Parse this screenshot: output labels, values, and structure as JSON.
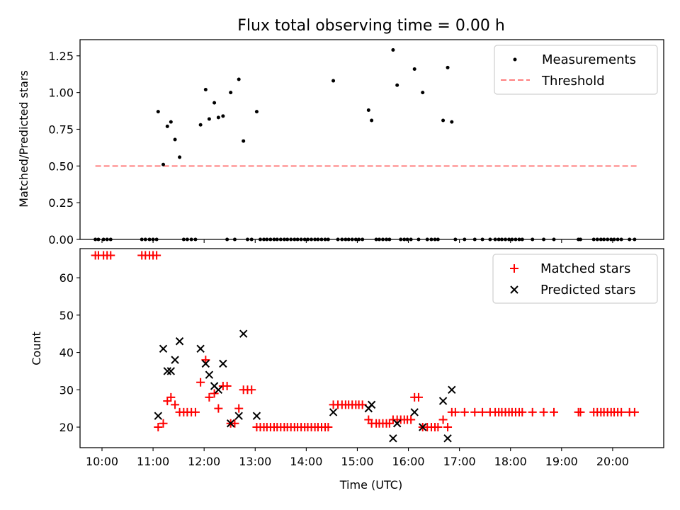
{
  "chart_data": [
    {
      "type": "scatter",
      "title": "Flux total observing time = 0.00 h",
      "xlabel": "",
      "ylabel": "Matched/Predicted stars",
      "xlim": [
        9.57,
        21.0
      ],
      "ylim": [
        0.0,
        1.36
      ],
      "y_ticks": [
        "0.00",
        "0.25",
        "0.50",
        "0.75",
        "1.00",
        "1.25"
      ],
      "y_tick_values": [
        0.0,
        0.25,
        0.5,
        0.75,
        1.0,
        1.25
      ],
      "x_tick_values": [
        10,
        11,
        12,
        13,
        14,
        15,
        16,
        17,
        18,
        19,
        20
      ],
      "legend": {
        "position": "top-right",
        "entries": [
          "Measurements",
          "Threshold"
        ]
      },
      "series": [
        {
          "name": "Measurements",
          "style": "dot",
          "color": "#000000",
          "points": [
            [
              9.87,
              0
            ],
            [
              9.93,
              0
            ],
            [
              10.03,
              0
            ],
            [
              10.1,
              0
            ],
            [
              10.17,
              0
            ],
            [
              10.78,
              0
            ],
            [
              10.85,
              0
            ],
            [
              10.93,
              0
            ],
            [
              11.0,
              0
            ],
            [
              11.07,
              0
            ],
            [
              11.1,
              0.87
            ],
            [
              11.2,
              0.51
            ],
            [
              11.28,
              0.77
            ],
            [
              11.35,
              0.8
            ],
            [
              11.43,
              0.68
            ],
            [
              11.52,
              0.56
            ],
            [
              11.6,
              0
            ],
            [
              11.67,
              0
            ],
            [
              11.75,
              0
            ],
            [
              11.83,
              0
            ],
            [
              11.93,
              0.78
            ],
            [
              12.03,
              1.02
            ],
            [
              12.1,
              0.82
            ],
            [
              12.2,
              0.93
            ],
            [
              12.28,
              0.83
            ],
            [
              12.37,
              0.84
            ],
            [
              12.45,
              0
            ],
            [
              12.52,
              1.0
            ],
            [
              12.6,
              0
            ],
            [
              12.68,
              1.09
            ],
            [
              12.77,
              0.67
            ],
            [
              12.85,
              0
            ],
            [
              12.93,
              0
            ],
            [
              13.03,
              0.87
            ],
            [
              13.1,
              0
            ],
            [
              13.17,
              0
            ],
            [
              13.23,
              0
            ],
            [
              13.3,
              0
            ],
            [
              13.37,
              0
            ],
            [
              13.43,
              0
            ],
            [
              13.5,
              0
            ],
            [
              13.57,
              0
            ],
            [
              13.63,
              0
            ],
            [
              13.7,
              0
            ],
            [
              13.77,
              0
            ],
            [
              13.83,
              0
            ],
            [
              13.9,
              0
            ],
            [
              13.97,
              0
            ],
            [
              14.03,
              0
            ],
            [
              14.1,
              0
            ],
            [
              14.17,
              0
            ],
            [
              14.23,
              0
            ],
            [
              14.3,
              0
            ],
            [
              14.37,
              0
            ],
            [
              14.43,
              0
            ],
            [
              14.53,
              1.08
            ],
            [
              14.62,
              0
            ],
            [
              14.7,
              0
            ],
            [
              14.77,
              0
            ],
            [
              14.83,
              0
            ],
            [
              14.9,
              0
            ],
            [
              14.97,
              0
            ],
            [
              15.03,
              0
            ],
            [
              15.1,
              0
            ],
            [
              15.22,
              0.88
            ],
            [
              15.28,
              0.81
            ],
            [
              15.37,
              0
            ],
            [
              15.43,
              0
            ],
            [
              15.5,
              0
            ],
            [
              15.57,
              0
            ],
            [
              15.63,
              0
            ],
            [
              15.7,
              1.29
            ],
            [
              15.78,
              1.05
            ],
            [
              15.85,
              0
            ],
            [
              15.92,
              0
            ],
            [
              15.98,
              0
            ],
            [
              16.05,
              0
            ],
            [
              16.12,
              1.16
            ],
            [
              16.2,
              0
            ],
            [
              16.28,
              1.0
            ],
            [
              16.37,
              0
            ],
            [
              16.45,
              0
            ],
            [
              16.52,
              0
            ],
            [
              16.58,
              0
            ],
            [
              16.68,
              0.81
            ],
            [
              16.77,
              1.17
            ],
            [
              16.85,
              0.8
            ],
            [
              16.92,
              0
            ],
            [
              17.1,
              0
            ],
            [
              17.3,
              0
            ],
            [
              17.45,
              0
            ],
            [
              17.6,
              0
            ],
            [
              17.7,
              0
            ],
            [
              17.77,
              0
            ],
            [
              17.83,
              0
            ],
            [
              17.9,
              0
            ],
            [
              17.97,
              0
            ],
            [
              18.03,
              0
            ],
            [
              18.1,
              0
            ],
            [
              18.17,
              0
            ],
            [
              18.23,
              0
            ],
            [
              18.43,
              0
            ],
            [
              18.65,
              0
            ],
            [
              18.85,
              0
            ],
            [
              19.33,
              0
            ],
            [
              19.37,
              0
            ],
            [
              19.63,
              0
            ],
            [
              19.7,
              0
            ],
            [
              19.77,
              0
            ],
            [
              19.83,
              0
            ],
            [
              19.9,
              0
            ],
            [
              19.97,
              0
            ],
            [
              20.03,
              0
            ],
            [
              20.1,
              0
            ],
            [
              20.17,
              0
            ],
            [
              20.33,
              0
            ],
            [
              20.43,
              0
            ]
          ]
        },
        {
          "name": "Threshold",
          "style": "dashed",
          "color": "#ff7f7f",
          "points": [
            [
              9.87,
              0.5
            ],
            [
              20.48,
              0.5
            ]
          ]
        }
      ]
    },
    {
      "type": "scatter",
      "title": "",
      "xlabel": "Time (UTC)",
      "ylabel": "Count",
      "xlim": [
        9.57,
        21.0
      ],
      "ylim": [
        14.5,
        67.8
      ],
      "y_ticks": [
        "20",
        "30",
        "40",
        "50",
        "60"
      ],
      "y_tick_values": [
        20,
        30,
        40,
        50,
        60
      ],
      "x_ticks": [
        "10:00",
        "11:00",
        "12:00",
        "13:00",
        "14:00",
        "15:00",
        "16:00",
        "17:00",
        "18:00",
        "19:00",
        "20:00"
      ],
      "x_tick_values": [
        10,
        11,
        12,
        13,
        14,
        15,
        16,
        17,
        18,
        19,
        20
      ],
      "legend": {
        "position": "top-right",
        "entries": [
          "Matched stars",
          "Predicted stars"
        ]
      },
      "series": [
        {
          "name": "Matched stars",
          "style": "plus",
          "color": "#ff0000",
          "points": [
            [
              9.87,
              66
            ],
            [
              9.93,
              66
            ],
            [
              10.03,
              66
            ],
            [
              10.1,
              66
            ],
            [
              10.17,
              66
            ],
            [
              10.78,
              66
            ],
            [
              10.85,
              66
            ],
            [
              10.93,
              66
            ],
            [
              11.0,
              66
            ],
            [
              11.07,
              66
            ],
            [
              11.1,
              20
            ],
            [
              11.2,
              21
            ],
            [
              11.28,
              27
            ],
            [
              11.35,
              28
            ],
            [
              11.43,
              26
            ],
            [
              11.52,
              24
            ],
            [
              11.6,
              24
            ],
            [
              11.67,
              24
            ],
            [
              11.75,
              24
            ],
            [
              11.83,
              24
            ],
            [
              11.93,
              32
            ],
            [
              12.03,
              38
            ],
            [
              12.1,
              28
            ],
            [
              12.2,
              29
            ],
            [
              12.28,
              25
            ],
            [
              12.37,
              31
            ],
            [
              12.45,
              31
            ],
            [
              12.52,
              21
            ],
            [
              12.6,
              21
            ],
            [
              12.68,
              25
            ],
            [
              12.77,
              30
            ],
            [
              12.85,
              30
            ],
            [
              12.93,
              30
            ],
            [
              13.03,
              20
            ],
            [
              13.1,
              20
            ],
            [
              13.17,
              20
            ],
            [
              13.23,
              20
            ],
            [
              13.3,
              20
            ],
            [
              13.37,
              20
            ],
            [
              13.43,
              20
            ],
            [
              13.5,
              20
            ],
            [
              13.57,
              20
            ],
            [
              13.63,
              20
            ],
            [
              13.7,
              20
            ],
            [
              13.77,
              20
            ],
            [
              13.83,
              20
            ],
            [
              13.9,
              20
            ],
            [
              13.97,
              20
            ],
            [
              14.03,
              20
            ],
            [
              14.1,
              20
            ],
            [
              14.17,
              20
            ],
            [
              14.23,
              20
            ],
            [
              14.3,
              20
            ],
            [
              14.37,
              20
            ],
            [
              14.43,
              20
            ],
            [
              14.53,
              26
            ],
            [
              14.62,
              26
            ],
            [
              14.7,
              26
            ],
            [
              14.77,
              26
            ],
            [
              14.83,
              26
            ],
            [
              14.9,
              26
            ],
            [
              14.97,
              26
            ],
            [
              15.03,
              26
            ],
            [
              15.1,
              26
            ],
            [
              15.22,
              22
            ],
            [
              15.28,
              21
            ],
            [
              15.37,
              21
            ],
            [
              15.43,
              21
            ],
            [
              15.5,
              21
            ],
            [
              15.57,
              21
            ],
            [
              15.63,
              21
            ],
            [
              15.7,
              22
            ],
            [
              15.78,
              22
            ],
            [
              15.85,
              22
            ],
            [
              15.92,
              22
            ],
            [
              15.98,
              22
            ],
            [
              16.05,
              22
            ],
            [
              16.12,
              28
            ],
            [
              16.2,
              28
            ],
            [
              16.28,
              20
            ],
            [
              16.37,
              20
            ],
            [
              16.45,
              20
            ],
            [
              16.52,
              20
            ],
            [
              16.58,
              20
            ],
            [
              16.68,
              22
            ],
            [
              16.77,
              20
            ],
            [
              16.85,
              24
            ],
            [
              16.92,
              24
            ],
            [
              17.1,
              24
            ],
            [
              17.3,
              24
            ],
            [
              17.45,
              24
            ],
            [
              17.6,
              24
            ],
            [
              17.7,
              24
            ],
            [
              17.77,
              24
            ],
            [
              17.83,
              24
            ],
            [
              17.9,
              24
            ],
            [
              17.97,
              24
            ],
            [
              18.03,
              24
            ],
            [
              18.1,
              24
            ],
            [
              18.17,
              24
            ],
            [
              18.23,
              24
            ],
            [
              18.43,
              24
            ],
            [
              18.65,
              24
            ],
            [
              18.85,
              24
            ],
            [
              19.33,
              24
            ],
            [
              19.37,
              24
            ],
            [
              19.63,
              24
            ],
            [
              19.7,
              24
            ],
            [
              19.77,
              24
            ],
            [
              19.83,
              24
            ],
            [
              19.9,
              24
            ],
            [
              19.97,
              24
            ],
            [
              20.03,
              24
            ],
            [
              20.1,
              24
            ],
            [
              20.17,
              24
            ],
            [
              20.33,
              24
            ],
            [
              20.43,
              24
            ]
          ]
        },
        {
          "name": "Predicted stars",
          "style": "cross",
          "color": "#000000",
          "points": [
            [
              11.1,
              23
            ],
            [
              11.2,
              41
            ],
            [
              11.28,
              35
            ],
            [
              11.35,
              35
            ],
            [
              11.43,
              38
            ],
            [
              11.52,
              43
            ],
            [
              11.93,
              41
            ],
            [
              12.03,
              37
            ],
            [
              12.1,
              34
            ],
            [
              12.2,
              31
            ],
            [
              12.28,
              30
            ],
            [
              12.37,
              37
            ],
            [
              12.52,
              21
            ],
            [
              12.68,
              23
            ],
            [
              12.77,
              45
            ],
            [
              13.03,
              23
            ],
            [
              14.53,
              24
            ],
            [
              15.22,
              25
            ],
            [
              15.28,
              26
            ],
            [
              15.7,
              17
            ],
            [
              15.78,
              21
            ],
            [
              16.12,
              24
            ],
            [
              16.28,
              20
            ],
            [
              16.68,
              27
            ],
            [
              16.77,
              17
            ],
            [
              16.85,
              30
            ]
          ]
        }
      ]
    }
  ]
}
